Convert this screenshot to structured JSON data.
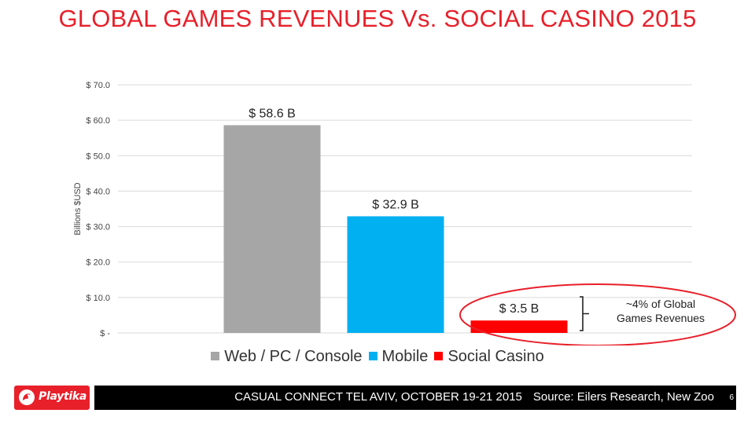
{
  "title": "GLOBAL GAMES REVENUES Vs. SOCIAL CASINO 2015",
  "chart_data": {
    "type": "bar",
    "categories": [
      "Web / PC / Console",
      "Mobile",
      "Social Casino"
    ],
    "values": [
      58.6,
      32.9,
      3.5
    ],
    "data_labels": [
      "$ 58.6 B",
      "$ 32.9 B",
      "$ 3.5 B"
    ],
    "colors": [
      "#a6a6a6",
      "#00b0f0",
      "#ff0000"
    ],
    "ylabel": "Billions $USD",
    "ylim": [
      0,
      70
    ],
    "yticks": [
      0,
      10,
      20,
      30,
      40,
      50,
      60,
      70
    ],
    "ytick_labels": [
      "$ -",
      "$ 10.0",
      "$ 20.0",
      "$ 30.0",
      "$ 40.0",
      "$ 50.0",
      "$ 60.0",
      "$ 70.0"
    ],
    "grid": true,
    "legend": "bottom",
    "annotation": "~4% of Global Games Revenues"
  },
  "annotation": {
    "line1": "~4% of Global",
    "line2": "Games Revenues"
  },
  "footer": {
    "event": "CASUAL CONNECT TEL AVIV, OCTOBER 19-21 2015",
    "source": "Source: Eilers Research, New Zoo",
    "page": "6"
  },
  "logo": {
    "text": "Playtika",
    "icon": "parrot-logo-icon",
    "color": "#e8202a"
  }
}
